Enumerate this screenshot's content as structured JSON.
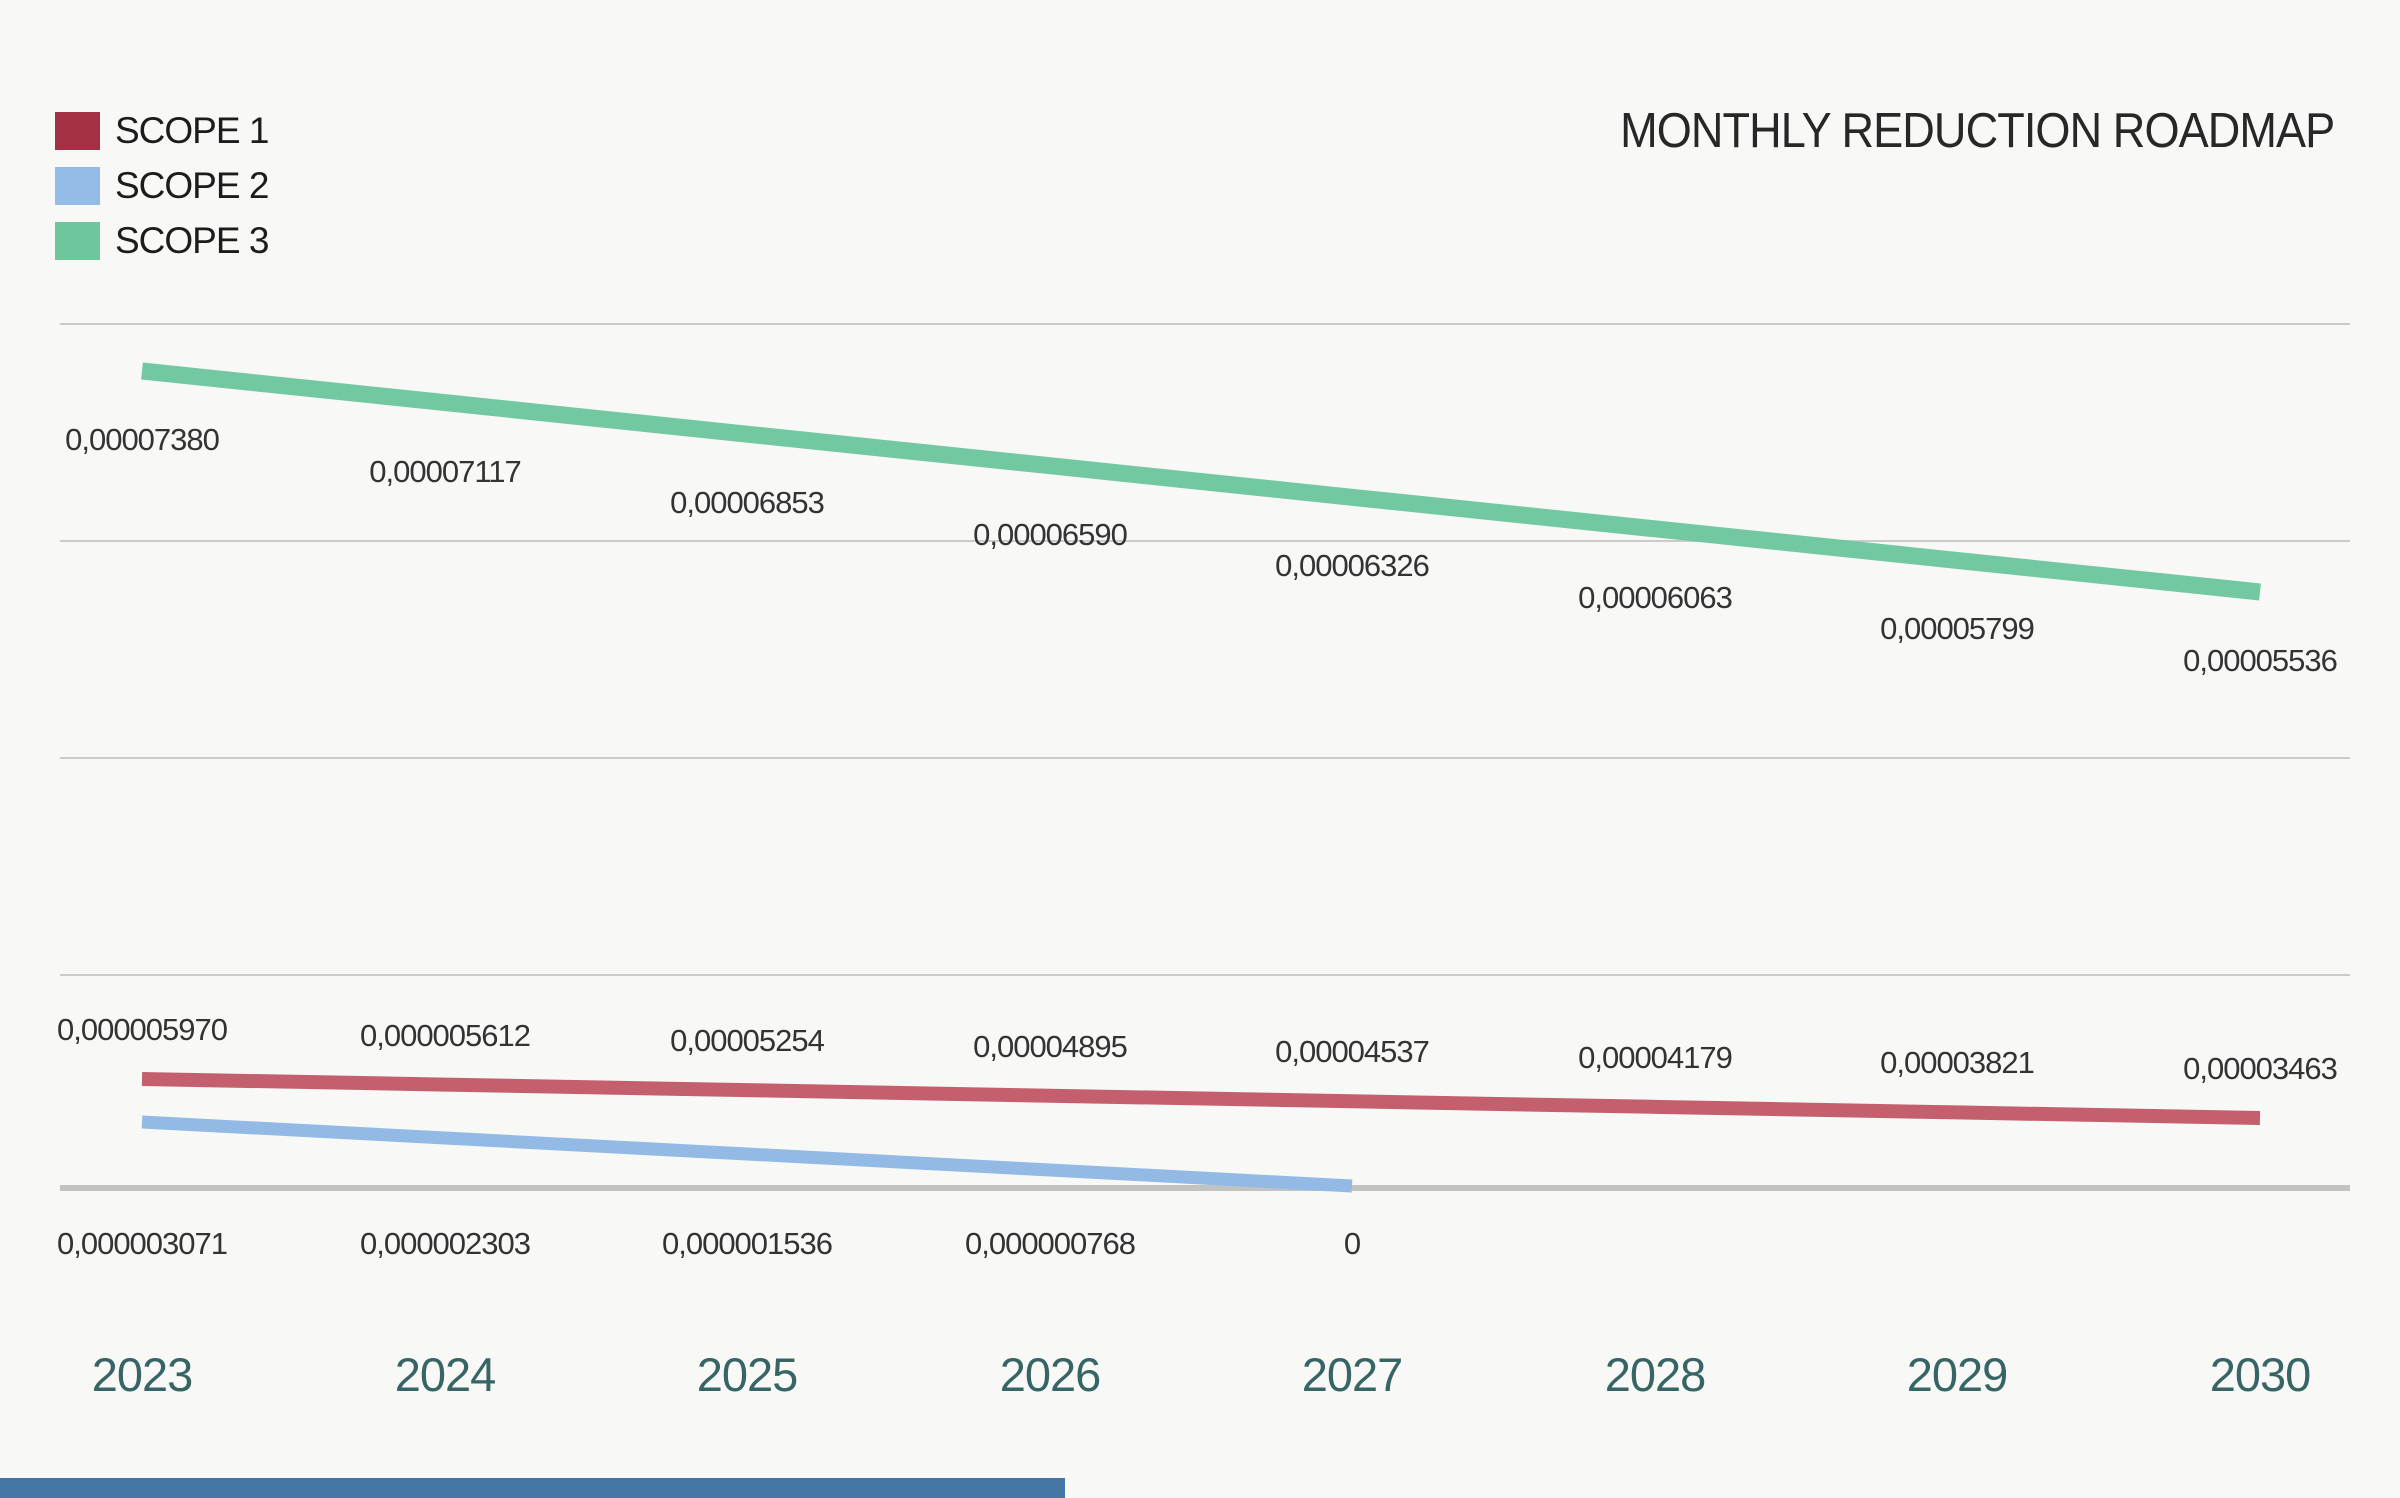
{
  "title": "MONTHLY REDUCTION ROADMAP",
  "colors": {
    "background": "#f8f8f7",
    "gridline": "#cbcbcb",
    "axis_line": "#c2c2c2",
    "title_text": "#272727",
    "data_label_text": "#333333",
    "year_label_text": "#376464",
    "footer_bar": "#4577a5"
  },
  "chart_data": {
    "type": "line",
    "title": "MONTHLY REDUCTION ROADMAP",
    "categories": [
      "2023",
      "2024",
      "2025",
      "2026",
      "2027",
      "2028",
      "2029",
      "2030"
    ],
    "decimal_separator": ",",
    "grid": "horizontal-only",
    "legend_position": "top-left",
    "series": [
      {
        "name": "SCOPE 1",
        "color": "#a43046",
        "line_color": "#c4606e",
        "labels": [
          "0,000005970",
          "0,000005612",
          "0,00005254",
          "0,00004895",
          "0,00004537",
          "0,00004179",
          "0,00003821",
          "0,00003463"
        ],
        "values": [
          5.97e-06,
          5.612e-06,
          5.254e-05,
          4.895e-05,
          4.537e-05,
          4.179e-05,
          3.821e-05,
          3.463e-05
        ]
      },
      {
        "name": "SCOPE 2",
        "color": "#93bce7",
        "line_color": "#92bae5",
        "labels": [
          "0,000003071",
          "0,000002303",
          "0,000001536",
          "0,000000768",
          "0"
        ],
        "values": [
          3.071e-06,
          2.303e-06,
          1.536e-06,
          7.68e-07,
          0
        ]
      },
      {
        "name": "SCOPE 3",
        "color": "#6ec79c",
        "line_color": "#72c8a0",
        "labels": [
          "0,00007380",
          "0,00007117",
          "0,00006853",
          "0,00006590",
          "0,00006326",
          "0,00006063",
          "0,00005799",
          "0,00005536"
        ],
        "values": [
          7.38e-05,
          7.117e-05,
          6.853e-05,
          6.59e-05,
          6.326e-05,
          6.063e-05,
          5.799e-05,
          5.536e-05
        ]
      }
    ]
  }
}
